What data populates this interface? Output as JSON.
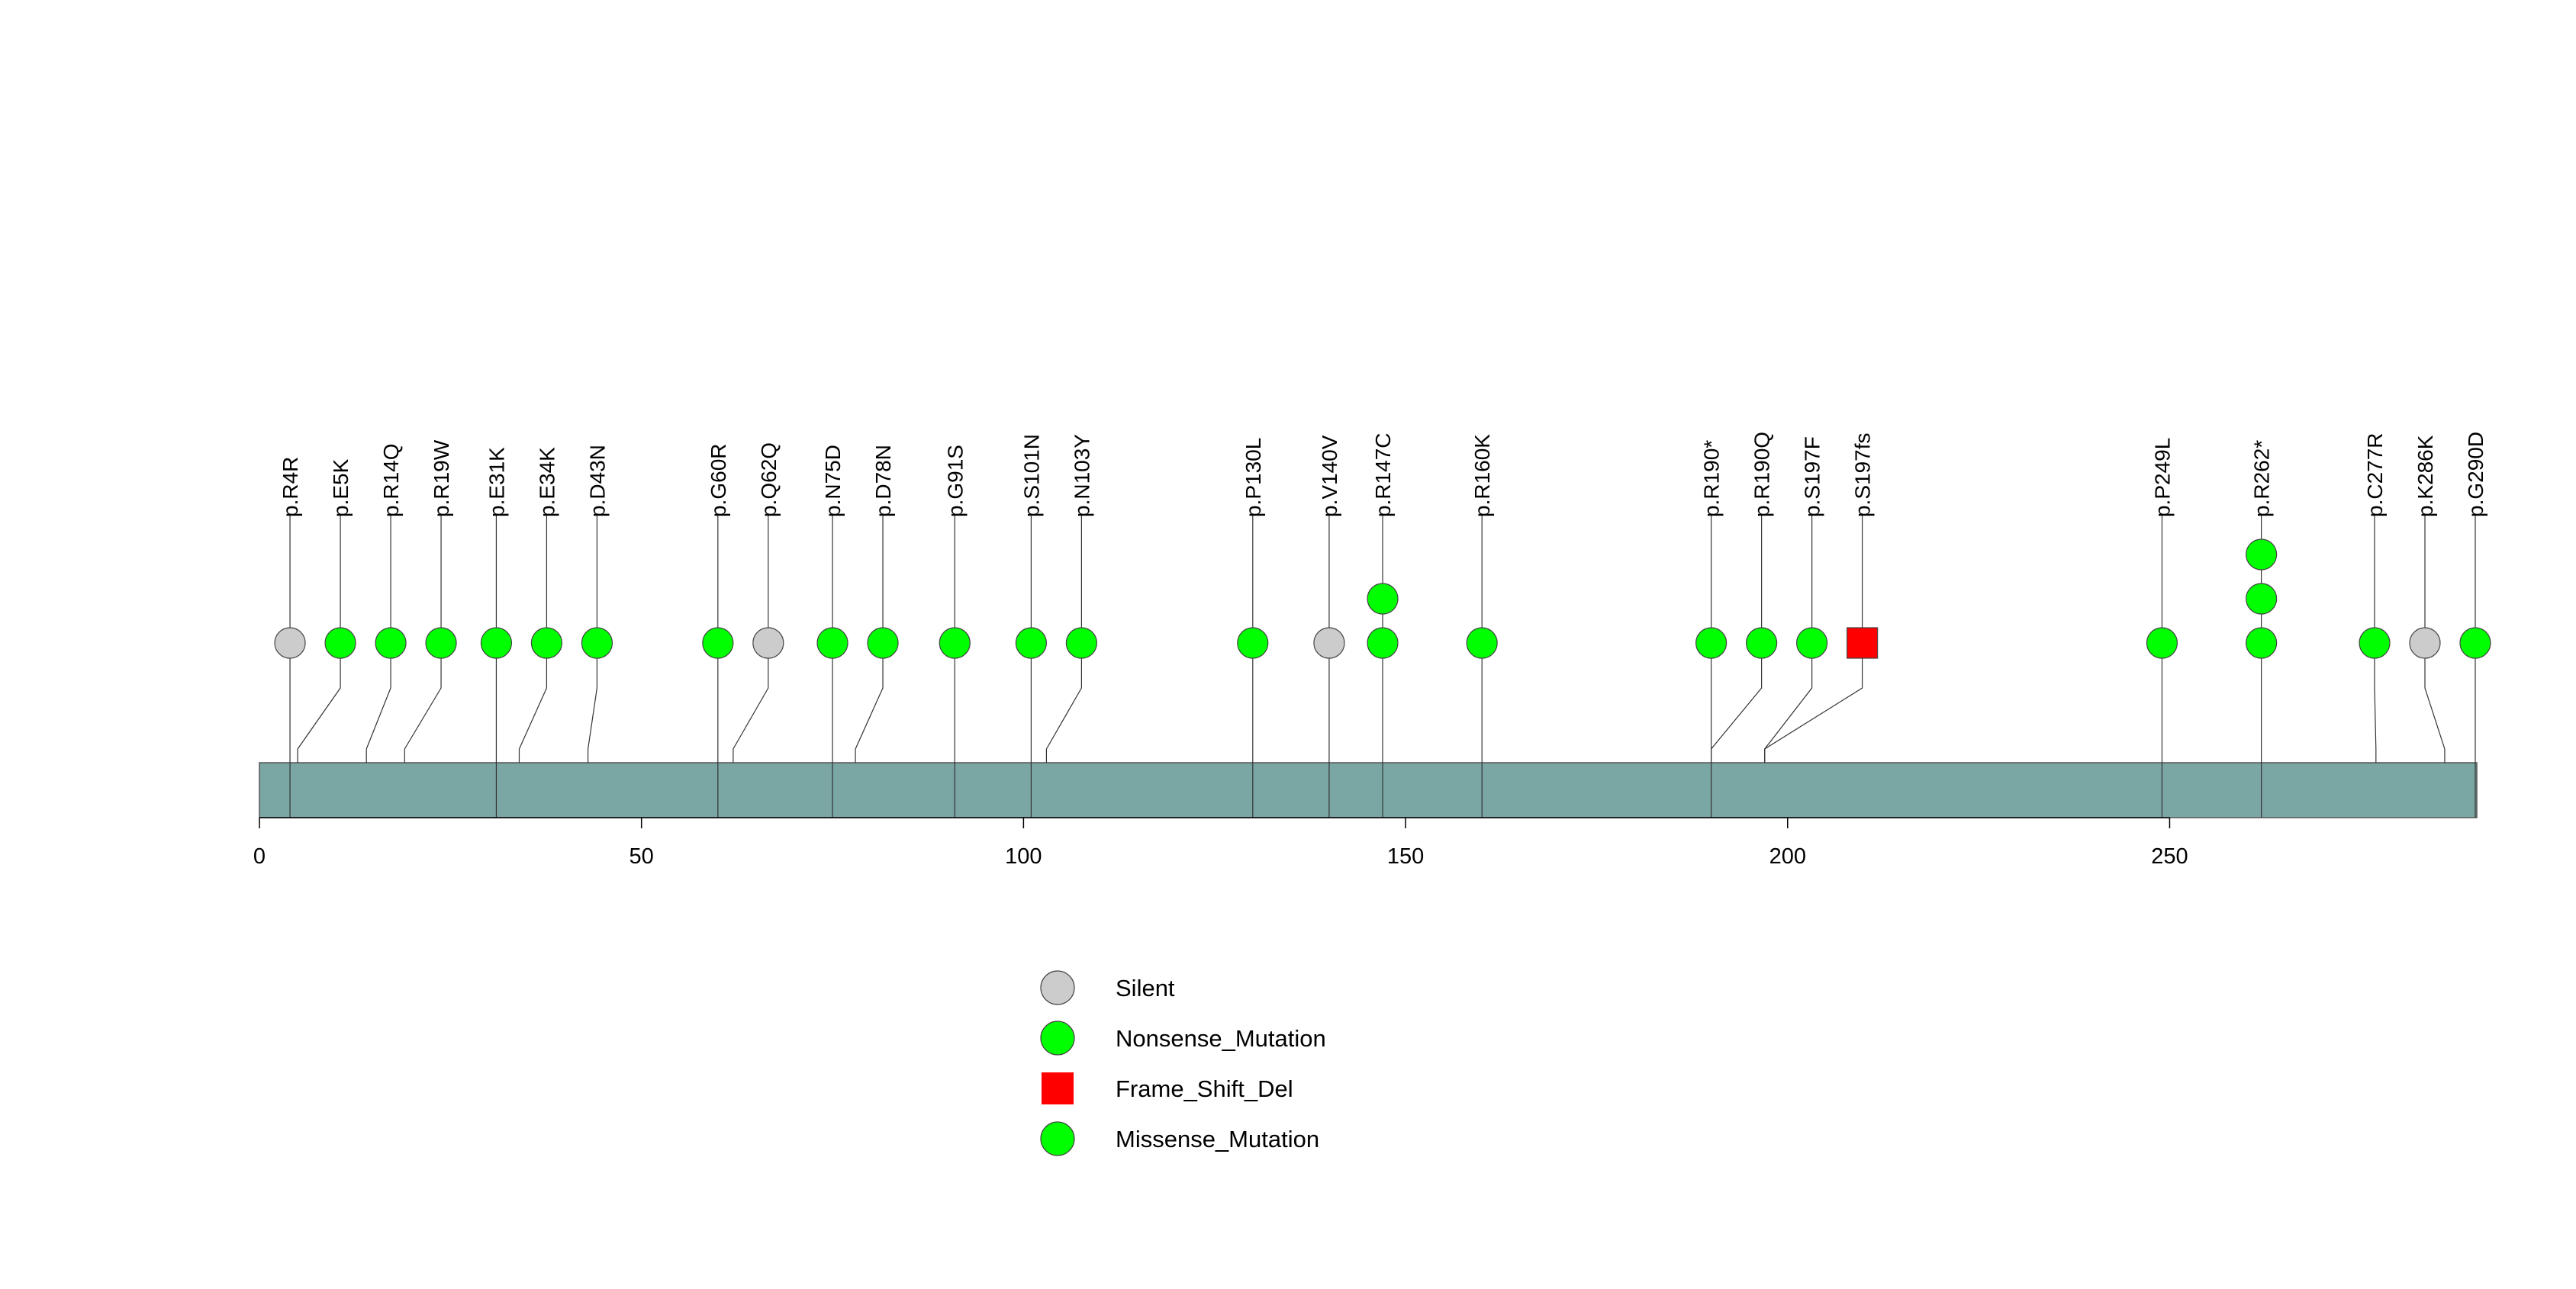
{
  "chart_data": {
    "type": "lollipop",
    "title": "",
    "xlabel": "",
    "ylabel": "",
    "xlim": [
      0,
      290
    ],
    "xticks": [
      0,
      50,
      100,
      150,
      200,
      250
    ],
    "xtick_labels": [
      "0",
      "50",
      "100",
      "150",
      "200",
      "250"
    ],
    "protein_bar": {
      "start": 0,
      "end": 290,
      "color": "#7aa6a4"
    },
    "colors": {
      "Silent": "#cccccc",
      "Nonsense_Mutation": "#00ff00",
      "Frame_Shift_Del": "#ff0000",
      "Missense_Mutation": "#00ff00"
    },
    "mutations": [
      {
        "label": "p.R4R",
        "position": 4,
        "count": 1,
        "type": "Silent"
      },
      {
        "label": "p.E5K",
        "position": 5,
        "count": 1,
        "type": "Missense_Mutation"
      },
      {
        "label": "p.R14Q",
        "position": 14,
        "count": 1,
        "type": "Missense_Mutation"
      },
      {
        "label": "p.R19W",
        "position": 19,
        "count": 1,
        "type": "Missense_Mutation"
      },
      {
        "label": "p.E31K",
        "position": 31,
        "count": 1,
        "type": "Missense_Mutation"
      },
      {
        "label": "p.E34K",
        "position": 34,
        "count": 1,
        "type": "Missense_Mutation"
      },
      {
        "label": "p.D43N",
        "position": 43,
        "count": 1,
        "type": "Missense_Mutation"
      },
      {
        "label": "p.G60R",
        "position": 60,
        "count": 1,
        "type": "Missense_Mutation"
      },
      {
        "label": "p.Q62Q",
        "position": 62,
        "count": 1,
        "type": "Silent"
      },
      {
        "label": "p.N75D",
        "position": 75,
        "count": 1,
        "type": "Missense_Mutation"
      },
      {
        "label": "p.D78N",
        "position": 78,
        "count": 1,
        "type": "Missense_Mutation"
      },
      {
        "label": "p.G91S",
        "position": 91,
        "count": 1,
        "type": "Missense_Mutation"
      },
      {
        "label": "p.S101N",
        "position": 101,
        "count": 1,
        "type": "Missense_Mutation"
      },
      {
        "label": "p.N103Y",
        "position": 103,
        "count": 1,
        "type": "Missense_Mutation"
      },
      {
        "label": "p.P130L",
        "position": 130,
        "count": 1,
        "type": "Missense_Mutation"
      },
      {
        "label": "p.V140V",
        "position": 140,
        "count": 1,
        "type": "Silent"
      },
      {
        "label": "p.R147C",
        "position": 147,
        "count": 2,
        "type": "Missense_Mutation"
      },
      {
        "label": "p.R160K",
        "position": 160,
        "count": 1,
        "type": "Missense_Mutation"
      },
      {
        "label": "p.R190*",
        "position": 190,
        "count": 1,
        "type": "Nonsense_Mutation"
      },
      {
        "label": "p.R190Q",
        "position": 190,
        "count": 1,
        "type": "Missense_Mutation"
      },
      {
        "label": "p.S197F",
        "position": 197,
        "count": 1,
        "type": "Missense_Mutation"
      },
      {
        "label": "p.S197fs",
        "position": 197,
        "count": 1,
        "type": "Frame_Shift_Del"
      },
      {
        "label": "p.P249L",
        "position": 249,
        "count": 1,
        "type": "Missense_Mutation"
      },
      {
        "label": "p.R262*",
        "position": 262,
        "count": 3,
        "type": "Nonsense_Mutation"
      },
      {
        "label": "p.C277R",
        "position": 277,
        "count": 1,
        "type": "Missense_Mutation"
      },
      {
        "label": "p.K286K",
        "position": 286,
        "count": 1,
        "type": "Silent"
      },
      {
        "label": "p.G290D",
        "position": 290,
        "count": 1,
        "type": "Missense_Mutation"
      }
    ],
    "legend": {
      "placement": "bottom-center",
      "entries": [
        {
          "label": "Silent",
          "shape": "circle",
          "color": "#cccccc"
        },
        {
          "label": "Nonsense_Mutation",
          "shape": "circle",
          "color": "#00ff00"
        },
        {
          "label": "Frame_Shift_Del",
          "shape": "square",
          "color": "#ff0000"
        },
        {
          "label": "Missense_Mutation",
          "shape": "circle",
          "color": "#00ff00"
        }
      ]
    }
  }
}
